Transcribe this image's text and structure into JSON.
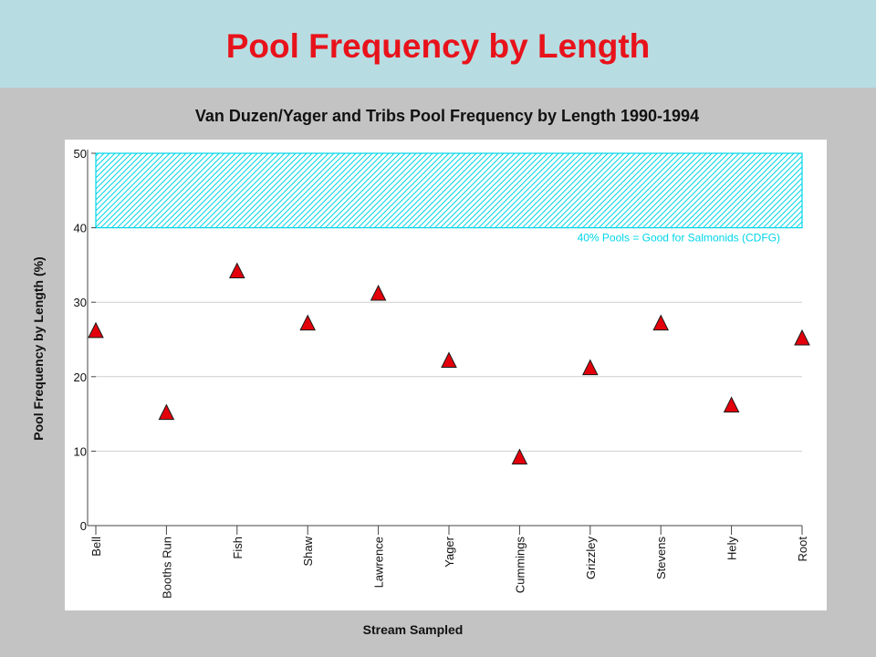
{
  "slide": {
    "title": "Pool Frequency by Length"
  },
  "chart_data": {
    "type": "scatter",
    "title": "Van Duzen/Yager and Tribs Pool Frequency by Length 1990-1994",
    "xlabel": "Stream Sampled",
    "ylabel": "Pool Frequency by Length (%)",
    "ylim": [
      0,
      50
    ],
    "yticks": [
      0,
      10,
      20,
      30,
      40,
      50
    ],
    "grid": true,
    "categories": [
      "Bell",
      "Booths Run",
      "Fish",
      "Shaw",
      "Lawrence",
      "Yager",
      "Cummings",
      "Grizzley",
      "Stevens",
      "Hely",
      "Root"
    ],
    "values": [
      26,
      15,
      34,
      27,
      31,
      22,
      9,
      21,
      27,
      16,
      25
    ],
    "marker": "triangle",
    "marker_color": "#e3000b",
    "target_band": {
      "from": 40,
      "to": 50,
      "label": "40% Pools = Good for Salmonids (CDFG)",
      "color": "#00d5e8"
    }
  }
}
